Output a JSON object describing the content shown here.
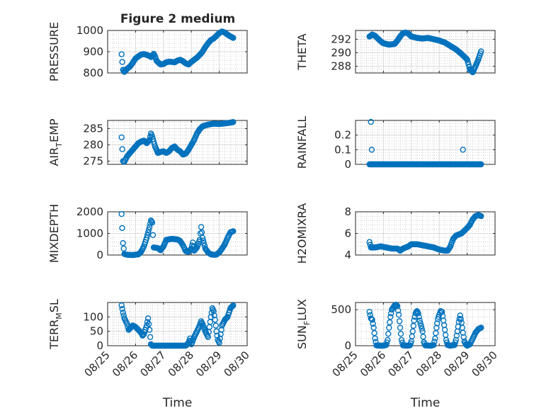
{
  "figure": {
    "title": "Figure 2 medium"
  },
  "colors": {
    "marker": "#0072BD",
    "axis": "#262626",
    "grid": "#c8c8c8",
    "background": "#ffffff"
  },
  "chart_data": [
    {
      "type": "scatter",
      "ylabel": "PRESSURE",
      "ylim": [
        800,
        1000
      ],
      "yticks": [
        800,
        900,
        1000
      ],
      "xticks": [
        25,
        26,
        27,
        28,
        29,
        30
      ],
      "xticklabels": [],
      "grid": true,
      "anchors": [
        [
          25.5,
          888
        ],
        [
          25.55,
          815
        ],
        [
          25.6,
          805
        ],
        [
          25.7,
          820
        ],
        [
          25.8,
          830
        ],
        [
          25.9,
          848
        ],
        [
          26.0,
          868
        ],
        [
          26.1,
          878
        ],
        [
          26.2,
          887
        ],
        [
          26.3,
          889
        ],
        [
          26.4,
          885
        ],
        [
          26.5,
          880
        ],
        [
          26.55,
          875
        ],
        [
          26.6,
          880
        ],
        [
          26.65,
          890
        ],
        [
          26.7,
          878
        ],
        [
          26.75,
          858
        ],
        [
          26.85,
          845
        ],
        [
          26.9,
          840
        ],
        [
          27.0,
          842
        ],
        [
          27.1,
          850
        ],
        [
          27.2,
          853
        ],
        [
          27.3,
          852
        ],
        [
          27.4,
          850
        ],
        [
          27.5,
          858
        ],
        [
          27.6,
          862
        ],
        [
          27.7,
          855
        ],
        [
          27.8,
          845
        ],
        [
          27.9,
          840
        ],
        [
          28.0,
          852
        ],
        [
          28.1,
          862
        ],
        [
          28.2,
          872
        ],
        [
          28.3,
          885
        ],
        [
          28.4,
          900
        ],
        [
          28.5,
          922
        ],
        [
          28.6,
          940
        ],
        [
          28.7,
          955
        ],
        [
          28.8,
          962
        ],
        [
          28.9,
          975
        ],
        [
          29.0,
          988
        ],
        [
          29.1,
          995
        ],
        [
          29.2,
          990
        ],
        [
          29.3,
          980
        ],
        [
          29.4,
          972
        ],
        [
          29.5,
          965
        ]
      ]
    },
    {
      "type": "scatter",
      "ylabel": "THETA",
      "ylim": [
        287,
        293.3
      ],
      "yticks": [
        288,
        290,
        292
      ],
      "xticks": [
        25,
        26,
        27,
        28,
        29,
        30
      ],
      "xticklabels": [],
      "grid": true,
      "anchors": [
        [
          25.5,
          292.4
        ],
        [
          25.6,
          292.7
        ],
        [
          25.7,
          292.5
        ],
        [
          25.8,
          292.1
        ],
        [
          25.9,
          291.7
        ],
        [
          26.0,
          291.4
        ],
        [
          26.2,
          291.2
        ],
        [
          26.4,
          291.3
        ],
        [
          26.5,
          291.8
        ],
        [
          26.6,
          292.4
        ],
        [
          26.7,
          292.9
        ],
        [
          26.8,
          293.0
        ],
        [
          26.9,
          292.8
        ],
        [
          27.0,
          292.4
        ],
        [
          27.2,
          292.2
        ],
        [
          27.4,
          292.1
        ],
        [
          27.6,
          292.2
        ],
        [
          27.8,
          292.0
        ],
        [
          28.0,
          291.8
        ],
        [
          28.2,
          291.5
        ],
        [
          28.4,
          291.0
        ],
        [
          28.6,
          290.5
        ],
        [
          28.8,
          289.8
        ],
        [
          29.0,
          289.0
        ],
        [
          29.1,
          287.5
        ],
        [
          29.2,
          287.1
        ],
        [
          29.3,
          288.0
        ],
        [
          29.4,
          289.0
        ],
        [
          29.5,
          290.2
        ]
      ]
    },
    {
      "type": "scatter",
      "ylabel": "AIR_TEMP",
      "ylim": [
        274,
        287.5
      ],
      "yticks": [
        275,
        280,
        285
      ],
      "xticks": [
        25,
        26,
        27,
        28,
        29,
        30
      ],
      "xticklabels": [],
      "grid": true,
      "anchors": [
        [
          25.5,
          282.3
        ],
        [
          25.55,
          275
        ],
        [
          25.6,
          274.8
        ],
        [
          25.7,
          276.5
        ],
        [
          25.8,
          277.5
        ],
        [
          25.9,
          278.5
        ],
        [
          26.0,
          279.5
        ],
        [
          26.1,
          280.5
        ],
        [
          26.2,
          281.0
        ],
        [
          26.3,
          281.3
        ],
        [
          26.4,
          280.5
        ],
        [
          26.5,
          281.5
        ],
        [
          26.55,
          283.5
        ],
        [
          26.6,
          282.5
        ],
        [
          26.7,
          279.5
        ],
        [
          26.8,
          277.5
        ],
        [
          26.9,
          277.8
        ],
        [
          27.0,
          278.0
        ],
        [
          27.1,
          277.5
        ],
        [
          27.2,
          278.0
        ],
        [
          27.3,
          279.0
        ],
        [
          27.4,
          279.5
        ],
        [
          27.5,
          278.5
        ],
        [
          27.6,
          278.0
        ],
        [
          27.7,
          277.0
        ],
        [
          27.8,
          277.3
        ],
        [
          27.9,
          278.5
        ],
        [
          28.0,
          280.0
        ],
        [
          28.1,
          281.5
        ],
        [
          28.2,
          283.5
        ],
        [
          28.3,
          284.8
        ],
        [
          28.4,
          285.7
        ],
        [
          28.6,
          286.2
        ],
        [
          28.8,
          286.5
        ],
        [
          29.0,
          286.4
        ],
        [
          29.2,
          286.6
        ],
        [
          29.4,
          286.8
        ],
        [
          29.5,
          287.0
        ]
      ]
    },
    {
      "type": "scatter",
      "ylabel": "RAINFALL",
      "ylim": [
        0,
        0.3
      ],
      "yticks": [
        0,
        0.1,
        0.2
      ],
      "xticks": [
        25,
        26,
        27,
        28,
        29,
        30
      ],
      "xticklabels": [],
      "grid": true,
      "anchors": [
        [
          25.5,
          0
        ],
        [
          25.55,
          0
        ],
        [
          25.6,
          0
        ],
        [
          25.7,
          0
        ],
        [
          25.8,
          0
        ],
        [
          25.9,
          0
        ],
        [
          26.0,
          0
        ],
        [
          26.2,
          0
        ],
        [
          26.4,
          0
        ],
        [
          26.6,
          0
        ],
        [
          26.8,
          0
        ],
        [
          27.0,
          0
        ],
        [
          27.2,
          0
        ],
        [
          27.4,
          0
        ],
        [
          27.6,
          0
        ],
        [
          27.8,
          0
        ],
        [
          28.0,
          0
        ],
        [
          28.2,
          0
        ],
        [
          28.4,
          0
        ],
        [
          28.6,
          0
        ],
        [
          28.8,
          0
        ],
        [
          29.0,
          0
        ],
        [
          29.2,
          0
        ],
        [
          29.4,
          0
        ],
        [
          29.5,
          0
        ]
      ],
      "extra": [
        [
          25.55,
          0.29
        ],
        [
          25.58,
          0.1
        ],
        [
          28.85,
          0.1
        ]
      ]
    },
    {
      "type": "scatter",
      "ylabel": "MIXDEPTH",
      "ylim": [
        0,
        2000
      ],
      "yticks": [
        0,
        1000,
        2000
      ],
      "xticks": [
        25,
        26,
        27,
        28,
        29,
        30
      ],
      "xticklabels": [],
      "grid": true,
      "anchors": [
        [
          25.5,
          1900
        ],
        [
          25.52,
          1250
        ],
        [
          25.55,
          550
        ],
        [
          25.6,
          50
        ],
        [
          25.7,
          10
        ],
        [
          25.9,
          0
        ],
        [
          26.1,
          30
        ],
        [
          26.2,
          150
        ],
        [
          26.3,
          400
        ],
        [
          26.4,
          800
        ],
        [
          26.5,
          1300
        ],
        [
          26.55,
          1600
        ],
        [
          26.6,
          1500
        ],
        [
          26.65,
          350
        ],
        [
          26.8,
          320
        ],
        [
          26.9,
          220
        ],
        [
          27.0,
          400
        ],
        [
          27.1,
          700
        ],
        [
          27.3,
          750
        ],
        [
          27.5,
          720
        ],
        [
          27.6,
          650
        ],
        [
          27.7,
          450
        ],
        [
          27.8,
          180
        ],
        [
          27.9,
          150
        ],
        [
          28.0,
          300
        ],
        [
          28.05,
          580
        ],
        [
          28.1,
          200
        ],
        [
          28.2,
          350
        ],
        [
          28.3,
          700
        ],
        [
          28.35,
          1300
        ],
        [
          28.4,
          800
        ],
        [
          28.5,
          300
        ],
        [
          28.6,
          120
        ],
        [
          28.7,
          30
        ],
        [
          28.8,
          10
        ],
        [
          28.9,
          20
        ],
        [
          29.0,
          120
        ],
        [
          29.1,
          300
        ],
        [
          29.2,
          500
        ],
        [
          29.3,
          800
        ],
        [
          29.4,
          1050
        ],
        [
          29.5,
          1100
        ]
      ]
    },
    {
      "type": "scatter",
      "ylabel": "H2OMIXRA",
      "ylim": [
        4,
        8
      ],
      "yticks": [
        4,
        6,
        8
      ],
      "xticks": [
        25,
        26,
        27,
        28,
        29,
        30
      ],
      "xticklabels": [],
      "grid": true,
      "anchors": [
        [
          25.5,
          5.2
        ],
        [
          25.55,
          4.7
        ],
        [
          25.7,
          4.7
        ],
        [
          25.9,
          4.8
        ],
        [
          26.1,
          4.7
        ],
        [
          26.3,
          4.6
        ],
        [
          26.5,
          4.6
        ],
        [
          26.6,
          4.4
        ],
        [
          26.7,
          4.6
        ],
        [
          26.9,
          4.8
        ],
        [
          27.0,
          5.0
        ],
        [
          27.2,
          5.0
        ],
        [
          27.4,
          4.9
        ],
        [
          27.6,
          4.8
        ],
        [
          27.8,
          4.7
        ],
        [
          28.0,
          4.5
        ],
        [
          28.2,
          4.4
        ],
        [
          28.3,
          4.4
        ],
        [
          28.4,
          4.8
        ],
        [
          28.5,
          5.5
        ],
        [
          28.6,
          5.8
        ],
        [
          28.8,
          6.0
        ],
        [
          29.0,
          6.5
        ],
        [
          29.1,
          6.8
        ],
        [
          29.2,
          7.3
        ],
        [
          29.3,
          7.6
        ],
        [
          29.4,
          7.7
        ],
        [
          29.5,
          7.6
        ]
      ]
    },
    {
      "type": "scatter",
      "ylabel": "TERR_MSL",
      "ylim": [
        0,
        150
      ],
      "yticks": [
        0,
        50,
        100
      ],
      "xticks": [
        25,
        26,
        27,
        28,
        29,
        30
      ],
      "xticklabels": [
        "08/25",
        "08/26",
        "08/27",
        "08/28",
        "08/29",
        "08/30"
      ],
      "xlabel": "Time",
      "grid": true,
      "anchors": [
        [
          25.5,
          140
        ],
        [
          25.55,
          115
        ],
        [
          25.6,
          95
        ],
        [
          25.7,
          75
        ],
        [
          25.75,
          55
        ],
        [
          25.8,
          60
        ],
        [
          25.9,
          70
        ],
        [
          26.0,
          65
        ],
        [
          26.1,
          55
        ],
        [
          26.2,
          45
        ],
        [
          26.25,
          35
        ],
        [
          26.3,
          40
        ],
        [
          26.35,
          55
        ],
        [
          26.4,
          70
        ],
        [
          26.45,
          95
        ],
        [
          26.5,
          55
        ],
        [
          26.55,
          5
        ],
        [
          26.6,
          0
        ],
        [
          27.0,
          0
        ],
        [
          27.5,
          0
        ],
        [
          27.8,
          0
        ],
        [
          27.9,
          10
        ],
        [
          27.95,
          25
        ],
        [
          28.0,
          5
        ],
        [
          28.1,
          30
        ],
        [
          28.2,
          50
        ],
        [
          28.3,
          70
        ],
        [
          28.35,
          85
        ],
        [
          28.4,
          75
        ],
        [
          28.5,
          50
        ],
        [
          28.6,
          30
        ],
        [
          28.7,
          100
        ],
        [
          28.75,
          130
        ],
        [
          28.8,
          120
        ],
        [
          28.85,
          90
        ],
        [
          28.9,
          50
        ],
        [
          28.95,
          20
        ],
        [
          29.0,
          10
        ],
        [
          29.05,
          40
        ],
        [
          29.1,
          70
        ],
        [
          29.2,
          90
        ],
        [
          29.3,
          100
        ],
        [
          29.4,
          130
        ],
        [
          29.5,
          140
        ]
      ]
    },
    {
      "type": "scatter",
      "ylabel": "SUN_FLUX",
      "ylim": [
        0,
        600
      ],
      "yticks": [
        0,
        500
      ],
      "xticks": [
        25,
        26,
        27,
        28,
        29,
        30
      ],
      "xticklabels": [
        "08/25",
        "08/26",
        "08/27",
        "08/28",
        "08/29",
        "08/30"
      ],
      "xlabel": "Time",
      "grid": true,
      "anchors": [
        [
          25.5,
          470
        ],
        [
          25.55,
          380
        ],
        [
          25.6,
          360
        ],
        [
          25.65,
          250
        ],
        [
          25.7,
          100
        ],
        [
          25.75,
          5
        ],
        [
          25.9,
          0
        ],
        [
          26.0,
          0
        ],
        [
          26.1,
          10
        ],
        [
          26.15,
          80
        ],
        [
          26.2,
          250
        ],
        [
          26.25,
          400
        ],
        [
          26.3,
          500
        ],
        [
          26.4,
          560
        ],
        [
          26.45,
          570
        ],
        [
          26.5,
          550
        ],
        [
          26.55,
          430
        ],
        [
          26.6,
          250
        ],
        [
          26.65,
          80
        ],
        [
          26.7,
          5
        ],
        [
          26.85,
          0
        ],
        [
          26.95,
          5
        ],
        [
          27.0,
          60
        ],
        [
          27.05,
          200
        ],
        [
          27.1,
          350
        ],
        [
          27.15,
          450
        ],
        [
          27.2,
          480
        ],
        [
          27.25,
          450
        ],
        [
          27.3,
          350
        ],
        [
          27.4,
          200
        ],
        [
          27.45,
          50
        ],
        [
          27.5,
          5
        ],
        [
          27.7,
          0
        ],
        [
          27.8,
          10
        ],
        [
          27.85,
          100
        ],
        [
          27.9,
          250
        ],
        [
          27.95,
          370
        ],
        [
          28.0,
          430
        ],
        [
          28.05,
          480
        ],
        [
          28.1,
          470
        ],
        [
          28.15,
          350
        ],
        [
          28.2,
          220
        ],
        [
          28.25,
          80
        ],
        [
          28.3,
          10
        ],
        [
          28.4,
          0
        ],
        [
          28.55,
          10
        ],
        [
          28.6,
          80
        ],
        [
          28.65,
          200
        ],
        [
          28.7,
          330
        ],
        [
          28.75,
          420
        ],
        [
          28.8,
          320
        ],
        [
          28.85,
          180
        ],
        [
          28.9,
          60
        ],
        [
          28.95,
          20
        ],
        [
          29.0,
          0
        ],
        [
          29.1,
          20
        ],
        [
          29.2,
          100
        ],
        [
          29.3,
          180
        ],
        [
          29.4,
          230
        ],
        [
          29.5,
          250
        ]
      ]
    }
  ]
}
